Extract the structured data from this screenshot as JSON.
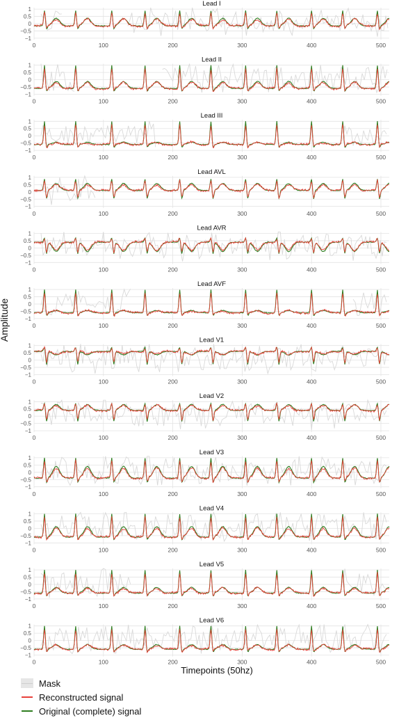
{
  "figure": {
    "ylabel": "Amplitude",
    "xlabel": "Timepoints (50hz)"
  },
  "colors": {
    "mask": "#d9d9d9",
    "reconstructed": "#e8403a",
    "original": "#2e7d1f",
    "grid": "#e3e3e3"
  },
  "legend": {
    "items": [
      {
        "label": "Mask",
        "color": "#d9d9d9"
      },
      {
        "label": "Reconstructed signal",
        "color": "#e8403a"
      },
      {
        "label": "Original (complete) signal",
        "color": "#2e7d1f"
      }
    ]
  },
  "chart_data": {
    "type": "line",
    "x_range": [
      0,
      512
    ],
    "x_ticks": [
      0,
      100,
      200,
      300,
      400,
      500
    ],
    "y_ticks": [
      1,
      0.5,
      0,
      -0.5,
      -1
    ],
    "y_tick_labels": [
      "1",
      "0.5",
      "0",
      "−0.5",
      "−1"
    ],
    "ylim": [
      -1.1,
      1.1
    ],
    "grid": true,
    "legend_position": "bottom-left",
    "series_names": [
      "Mask",
      "Reconstructed signal",
      "Original (complete) signal"
    ],
    "beat_positions": [
      15,
      60,
      112,
      160,
      210,
      255,
      305,
      350,
      400,
      445,
      495
    ],
    "leads": [
      {
        "title": "Lead I",
        "baseline": -0.15,
        "r_peak": 0.9,
        "s_trough": -0.55,
        "t_wave": 0.5,
        "mask_ranges": [
          [
            10,
            40
          ],
          [
            135,
            510
          ]
        ]
      },
      {
        "title": "Lead II",
        "baseline": -0.6,
        "r_peak": 1.0,
        "s_trough": -1.0,
        "t_wave": 0.0,
        "mask_ranges": [
          [
            10,
            60
          ],
          [
            185,
            510
          ]
        ]
      },
      {
        "title": "Lead III",
        "baseline": -0.6,
        "r_peak": 1.0,
        "s_trough": -1.0,
        "t_wave": -0.4,
        "mask_ranges": [
          [
            10,
            175
          ],
          [
            445,
            510
          ]
        ]
      },
      {
        "title": "Lead AVL",
        "baseline": 0.1,
        "r_peak": 0.9,
        "s_trough": -0.9,
        "t_wave": 0.7,
        "mask_ranges": [
          [
            10,
            90
          ]
        ]
      },
      {
        "title": "Lead AVR",
        "baseline": 0.4,
        "r_peak": 0.7,
        "s_trough": -0.9,
        "t_wave": -0.4,
        "mask_ranges": [
          [
            10,
            510
          ]
        ]
      },
      {
        "title": "Lead AVF",
        "baseline": -0.6,
        "r_peak": 1.0,
        "s_trough": -1.0,
        "t_wave": -0.4,
        "mask_ranges": [
          [
            10,
            140
          ],
          [
            460,
            510
          ]
        ]
      },
      {
        "title": "Lead V1",
        "baseline": 0.6,
        "r_peak": 0.9,
        "s_trough": -0.9,
        "t_wave": 0.3,
        "mask_ranges": [
          [
            10,
            510
          ]
        ]
      },
      {
        "title": "Lead V2",
        "baseline": 0.4,
        "r_peak": 0.9,
        "s_trough": -0.9,
        "t_wave": 0.9,
        "mask_ranges": [
          [
            10,
            510
          ]
        ]
      },
      {
        "title": "Lead V3",
        "baseline": -0.4,
        "r_peak": 1.0,
        "s_trough": -1.0,
        "t_wave": 0.6,
        "mask_ranges": [
          [
            10,
            510
          ]
        ]
      },
      {
        "title": "Lead V4",
        "baseline": -0.6,
        "r_peak": 1.0,
        "s_trough": -1.0,
        "t_wave": 0.3,
        "mask_ranges": [
          [
            10,
            510
          ]
        ]
      },
      {
        "title": "Lead V5",
        "baseline": -0.6,
        "r_peak": 1.0,
        "s_trough": -1.0,
        "t_wave": -0.1,
        "mask_ranges": [
          [
            10,
            140
          ],
          [
            445,
            510
          ]
        ]
      },
      {
        "title": "Lead V6",
        "baseline": -0.6,
        "r_peak": 1.0,
        "s_trough": -1.0,
        "t_wave": -0.2,
        "mask_ranges": [
          [
            10,
            510
          ]
        ]
      }
    ]
  }
}
